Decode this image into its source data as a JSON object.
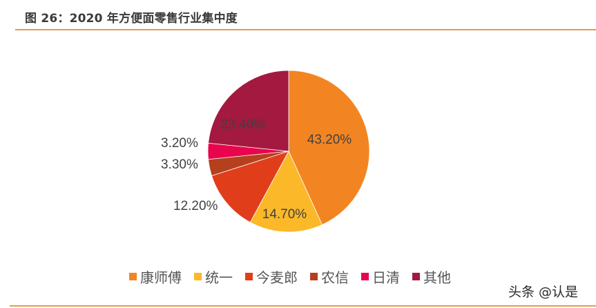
{
  "header": {
    "title": "图 26：2020 年方便面零售行业集中度"
  },
  "chart_data": {
    "type": "pie",
    "title": "2020 年方便面零售行业集中度",
    "categories": [
      "康师傅",
      "统一",
      "今麦郎",
      "农信",
      "日清",
      "其他"
    ],
    "values": [
      43.2,
      14.7,
      12.2,
      3.3,
      3.2,
      23.4
    ],
    "labels": [
      "43.20%",
      "14.70%",
      "12.20%",
      "3.30%",
      "3.20%",
      "23.40%"
    ],
    "colors": [
      "#F28522",
      "#FBB829",
      "#E03E1B",
      "#B5401E",
      "#E8054E",
      "#A3193F"
    ],
    "start_angle_deg": 0,
    "direction": "clockwise",
    "legend_position": "bottom"
  },
  "legend": [
    {
      "label": "康师傅",
      "color": "#F28522"
    },
    {
      "label": "统一",
      "color": "#FBB829"
    },
    {
      "label": "今麦郎",
      "color": "#E03E1B"
    },
    {
      "label": "农信",
      "color": "#B5401E"
    },
    {
      "label": "日清",
      "color": "#E8054E"
    },
    {
      "label": "其他",
      "color": "#A3193F"
    }
  ],
  "watermark": "头条 @认是"
}
